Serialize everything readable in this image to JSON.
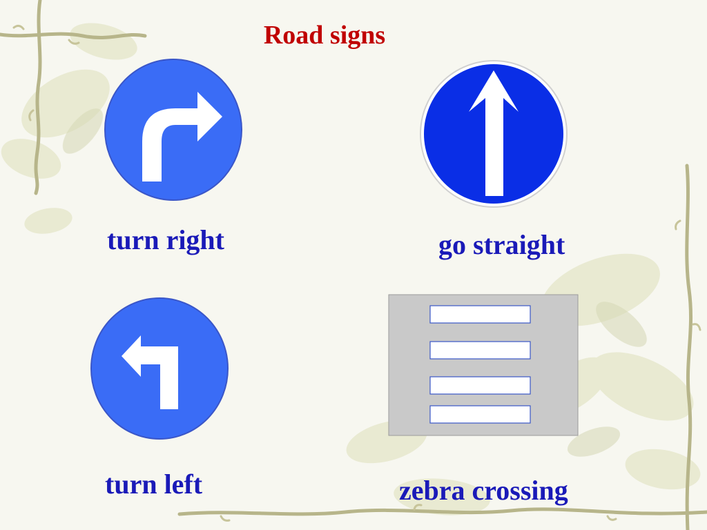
{
  "slide": {
    "title": "Road signs",
    "colors": {
      "title": "#c00000",
      "caption": "#1a1ab8",
      "sign_light_blue": "#3a6cf6",
      "sign_dark_blue": "#0a2ee6",
      "zebra_gray": "#c9c9c9"
    },
    "signs": [
      {
        "id": "turn-right",
        "icon": "turn-right-arrow-icon",
        "caption": "turn right"
      },
      {
        "id": "go-straight",
        "icon": "straight-arrow-icon",
        "caption": "go straight"
      },
      {
        "id": "turn-left",
        "icon": "turn-left-arrow-icon",
        "caption": "turn left"
      },
      {
        "id": "zebra-crossing",
        "icon": "zebra-crossing-icon",
        "caption": "zebra crossing"
      }
    ]
  }
}
